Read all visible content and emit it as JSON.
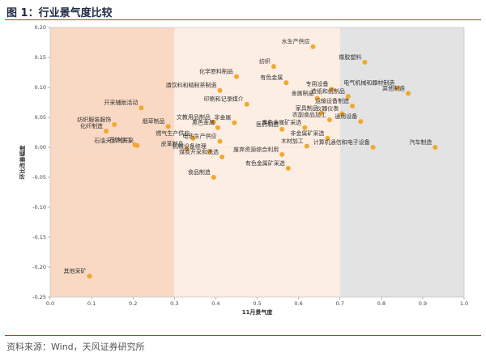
{
  "figure": {
    "title": "图 1：行业景气度比较",
    "source": "资料来源：Wind，天风证券研究所"
  },
  "colors": {
    "marker": "#f2a82e",
    "zone_low": "#f9d9c4",
    "zone_mid": "#fdeee4",
    "zone_high": "#e3e3e3",
    "rule": "#c9302c"
  },
  "chart_data": {
    "type": "scatter",
    "title": "",
    "xlabel": "11月景气度",
    "ylabel": "环比改善幅度",
    "xlim": [
      0.0,
      1.0
    ],
    "ylim": [
      -0.25,
      0.2
    ],
    "xticks": [
      "0.0",
      "0.1",
      "0.2",
      "0.3",
      "0.4",
      "0.5",
      "0.6",
      "0.7",
      "0.8",
      "0.9",
      "1.0"
    ],
    "yticks": [
      "0.20",
      "0.15",
      "0.10",
      "0.05",
      "0.00",
      "-0.05",
      "-0.10",
      "-0.15",
      "-0.20",
      "-0.25"
    ],
    "zones": [
      {
        "x0": 0.0,
        "x1": 0.3
      },
      {
        "x0": 0.3,
        "x1": 0.7
      },
      {
        "x0": 0.7,
        "x1": 1.0
      }
    ],
    "points": [
      {
        "name": "开采辅助活动",
        "x": 0.22,
        "y": 0.066
      },
      {
        "name": "纺织服装服饰",
        "x": 0.155,
        "y": 0.038
      },
      {
        "name": "化纤制造",
        "x": 0.135,
        "y": 0.027
      },
      {
        "name": "石油加工",
        "x": 0.205,
        "y": 0.004
      },
      {
        "name": "石油天然气开采",
        "x": 0.21,
        "y": 0.003
      },
      {
        "name": "烟草制品",
        "x": 0.285,
        "y": 0.035
      },
      {
        "name": "皮革制品",
        "x": 0.33,
        "y": -0.003
      },
      {
        "name": "其他采矿",
        "x": 0.095,
        "y": -0.215
      },
      {
        "name": "化学原料制品",
        "x": 0.45,
        "y": 0.118
      },
      {
        "name": "纺织",
        "x": 0.54,
        "y": 0.135
      },
      {
        "name": "水生产供应",
        "x": 0.635,
        "y": 0.168
      },
      {
        "name": "有色金属",
        "x": 0.57,
        "y": 0.108
      },
      {
        "name": "酒饮料和精制茶制造",
        "x": 0.41,
        "y": 0.095
      },
      {
        "name": "专用设备",
        "x": 0.68,
        "y": 0.097
      },
      {
        "name": "金属制品",
        "x": 0.645,
        "y": 0.082
      },
      {
        "name": "造纸和纸制品",
        "x": 0.72,
        "y": 0.085
      },
      {
        "name": "橡胶塑料",
        "x": 0.76,
        "y": 0.142
      },
      {
        "name": "电气机械和器材制造",
        "x": 0.84,
        "y": 0.099
      },
      {
        "name": "其他制造",
        "x": 0.865,
        "y": 0.09
      },
      {
        "name": "印刷和记录媒介",
        "x": 0.475,
        "y": 0.072
      },
      {
        "name": "运输设备制造",
        "x": 0.73,
        "y": 0.069
      },
      {
        "name": "家具制品",
        "x": 0.655,
        "y": 0.057
      },
      {
        "name": "仪器仪表",
        "x": 0.705,
        "y": 0.056
      },
      {
        "name": "文教用品制品",
        "x": 0.395,
        "y": 0.042
      },
      {
        "name": "农副食品加工",
        "x": 0.675,
        "y": 0.046
      },
      {
        "name": "医药制造",
        "x": 0.56,
        "y": 0.03
      },
      {
        "name": "黑色金属矿采选",
        "x": 0.615,
        "y": 0.033
      },
      {
        "name": "通用设备",
        "x": 0.75,
        "y": 0.043
      },
      {
        "name": "非金属",
        "x": 0.445,
        "y": 0.041
      },
      {
        "name": "黑色金属",
        "x": 0.405,
        "y": 0.033
      },
      {
        "name": "燃气生产供应",
        "x": 0.345,
        "y": 0.015
      },
      {
        "name": "电热生产供应",
        "x": 0.41,
        "y": 0.01
      },
      {
        "name": "非金属矿采选",
        "x": 0.67,
        "y": 0.015
      },
      {
        "name": "木材加工",
        "x": 0.62,
        "y": 0.002
      },
      {
        "name": "计算机通信和电子设备",
        "x": 0.78,
        "y": 0.0
      },
      {
        "name": "汽车制造",
        "x": 0.93,
        "y": 0.0
      },
      {
        "name": "机械设备修理",
        "x": 0.385,
        "y": -0.007
      },
      {
        "name": "废弃资源综合利用",
        "x": 0.56,
        "y": -0.012
      },
      {
        "name": "煤炭开采和洗选",
        "x": 0.415,
        "y": -0.016
      },
      {
        "name": "有色金属矿采选",
        "x": 0.575,
        "y": -0.035
      },
      {
        "name": "食品制造",
        "x": 0.395,
        "y": -0.05
      }
    ]
  }
}
